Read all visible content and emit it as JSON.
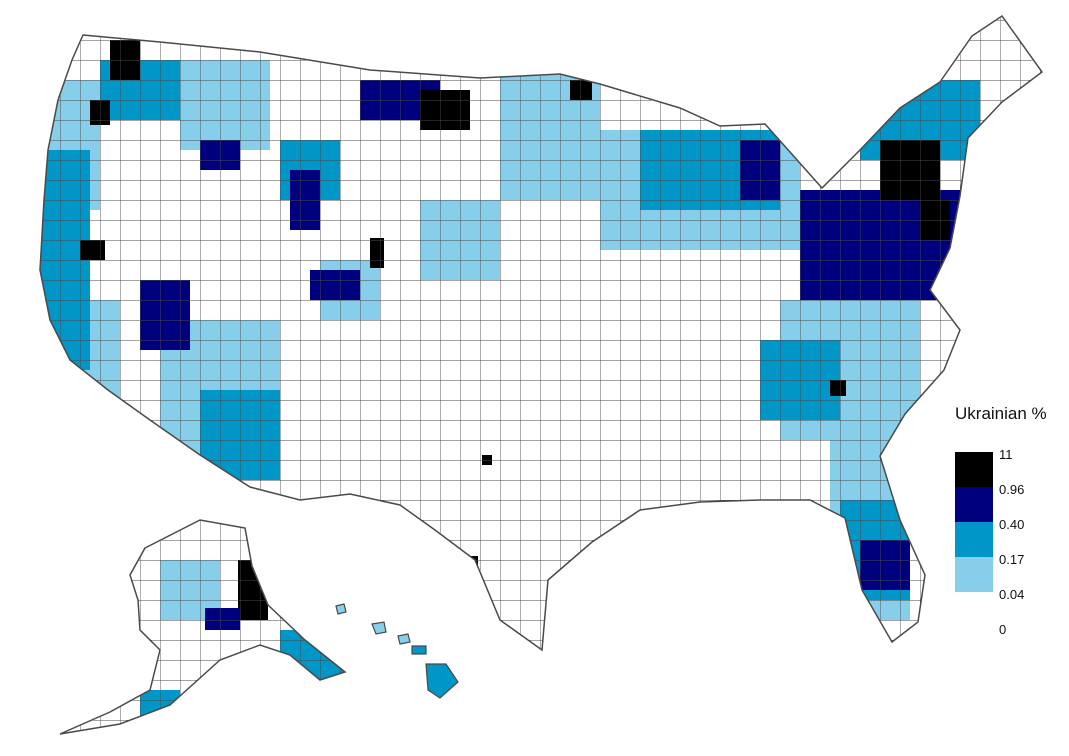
{
  "legend": {
    "title": "Ukrainian %",
    "breaks": [
      "11",
      "0.96",
      "0.40",
      "0.17",
      "0.04",
      "0"
    ],
    "colors": [
      "#000000",
      "#00007f",
      "#0096c8",
      "#87ceeb",
      "#ffffff"
    ]
  },
  "map_colors": {
    "border": "#4a4a4a",
    "none": "#ffffff",
    "low": "#87ceeb",
    "mid": "#0096c8",
    "high": "#00007f",
    "top": "#000000"
  }
}
